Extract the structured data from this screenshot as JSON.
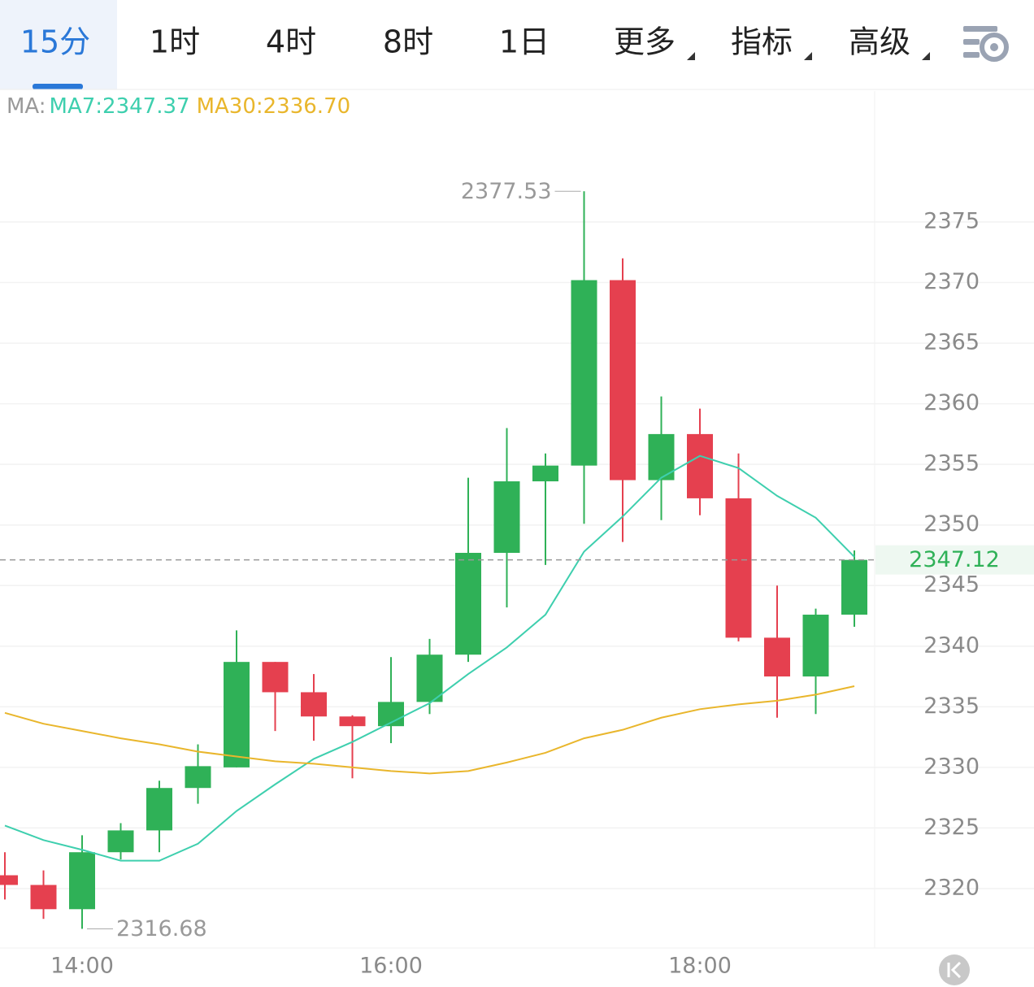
{
  "tabs": [
    "15分",
    "1时",
    "4时",
    "8时",
    "1日",
    "更多",
    "指标",
    "高级"
  ],
  "chart_data": {
    "type": "candlestick",
    "categories": [
      null,
      null,
      "14:00",
      null,
      null,
      null,
      null,
      null,
      null,
      null,
      "16:00",
      null,
      null,
      null,
      null,
      null,
      null,
      null,
      "18:00",
      null,
      null,
      null,
      null
    ],
    "open": [
      2321.1,
      2320.3,
      2318.3,
      2323.0,
      2324.8,
      2328.3,
      2330.0,
      2338.7,
      2336.2,
      2334.2,
      2333.4,
      2335.4,
      2339.3,
      2347.7,
      2353.6,
      2354.9,
      2370.2,
      2353.7,
      2357.5,
      2352.2,
      2340.7,
      2337.5,
      2342.6
    ],
    "close": [
      2320.3,
      2318.3,
      2323.0,
      2324.8,
      2328.3,
      2330.1,
      2338.7,
      2336.2,
      2334.2,
      2333.4,
      2335.4,
      2339.3,
      2347.7,
      2353.6,
      2354.9,
      2370.2,
      2353.7,
      2357.5,
      2352.2,
      2340.7,
      2337.5,
      2342.6,
      2347.12
    ],
    "high": [
      2323.0,
      2321.5,
      2324.4,
      2325.4,
      2328.9,
      2331.9,
      2341.3,
      2338.7,
      2337.7,
      2334.3,
      2339.1,
      2340.6,
      2353.9,
      2358.0,
      2355.9,
      2377.53,
      2372.0,
      2360.6,
      2359.6,
      2355.9,
      2345.0,
      2343.1,
      2347.9
    ],
    "low": [
      2319.1,
      2317.5,
      2316.68,
      2322.4,
      2323.0,
      2327.0,
      2330.0,
      2333.0,
      2332.2,
      2329.1,
      2332.0,
      2334.4,
      2338.7,
      2343.2,
      2346.7,
      2350.1,
      2348.6,
      2350.4,
      2350.8,
      2340.4,
      2334.1,
      2334.4,
      2341.6
    ],
    "up_color": "#2fb157",
    "down_color": "#e5404f",
    "legend_prefix": "MA:",
    "lines": [
      {
        "name": "MA7:2347.37",
        "color": "#3ecfae",
        "values": [
          2325.2,
          2324.0,
          2323.2,
          2322.3,
          2322.3,
          2323.7,
          2326.4,
          2328.6,
          2330.7,
          2332.1,
          2333.7,
          2335.3,
          2337.7,
          2339.9,
          2342.6,
          2347.8,
          2350.7,
          2353.9,
          2355.7,
          2354.7,
          2352.4,
          2350.6,
          2347.37
        ]
      },
      {
        "name": "MA30:2336.70",
        "color": "#e9b62c",
        "values": [
          2334.5,
          2333.6,
          2333.0,
          2332.4,
          2331.9,
          2331.3,
          2330.9,
          2330.5,
          2330.3,
          2330.0,
          2329.7,
          2329.5,
          2329.7,
          2330.4,
          2331.2,
          2332.4,
          2333.1,
          2334.1,
          2334.8,
          2335.2,
          2335.5,
          2336.0,
          2336.7
        ]
      }
    ],
    "ylim": [
      2315.1,
      2385.8
    ],
    "yticks": [
      2320,
      2325,
      2330,
      2335,
      2340,
      2345,
      2350,
      2355,
      2360,
      2365,
      2370,
      2375
    ],
    "grid": true
  }
}
